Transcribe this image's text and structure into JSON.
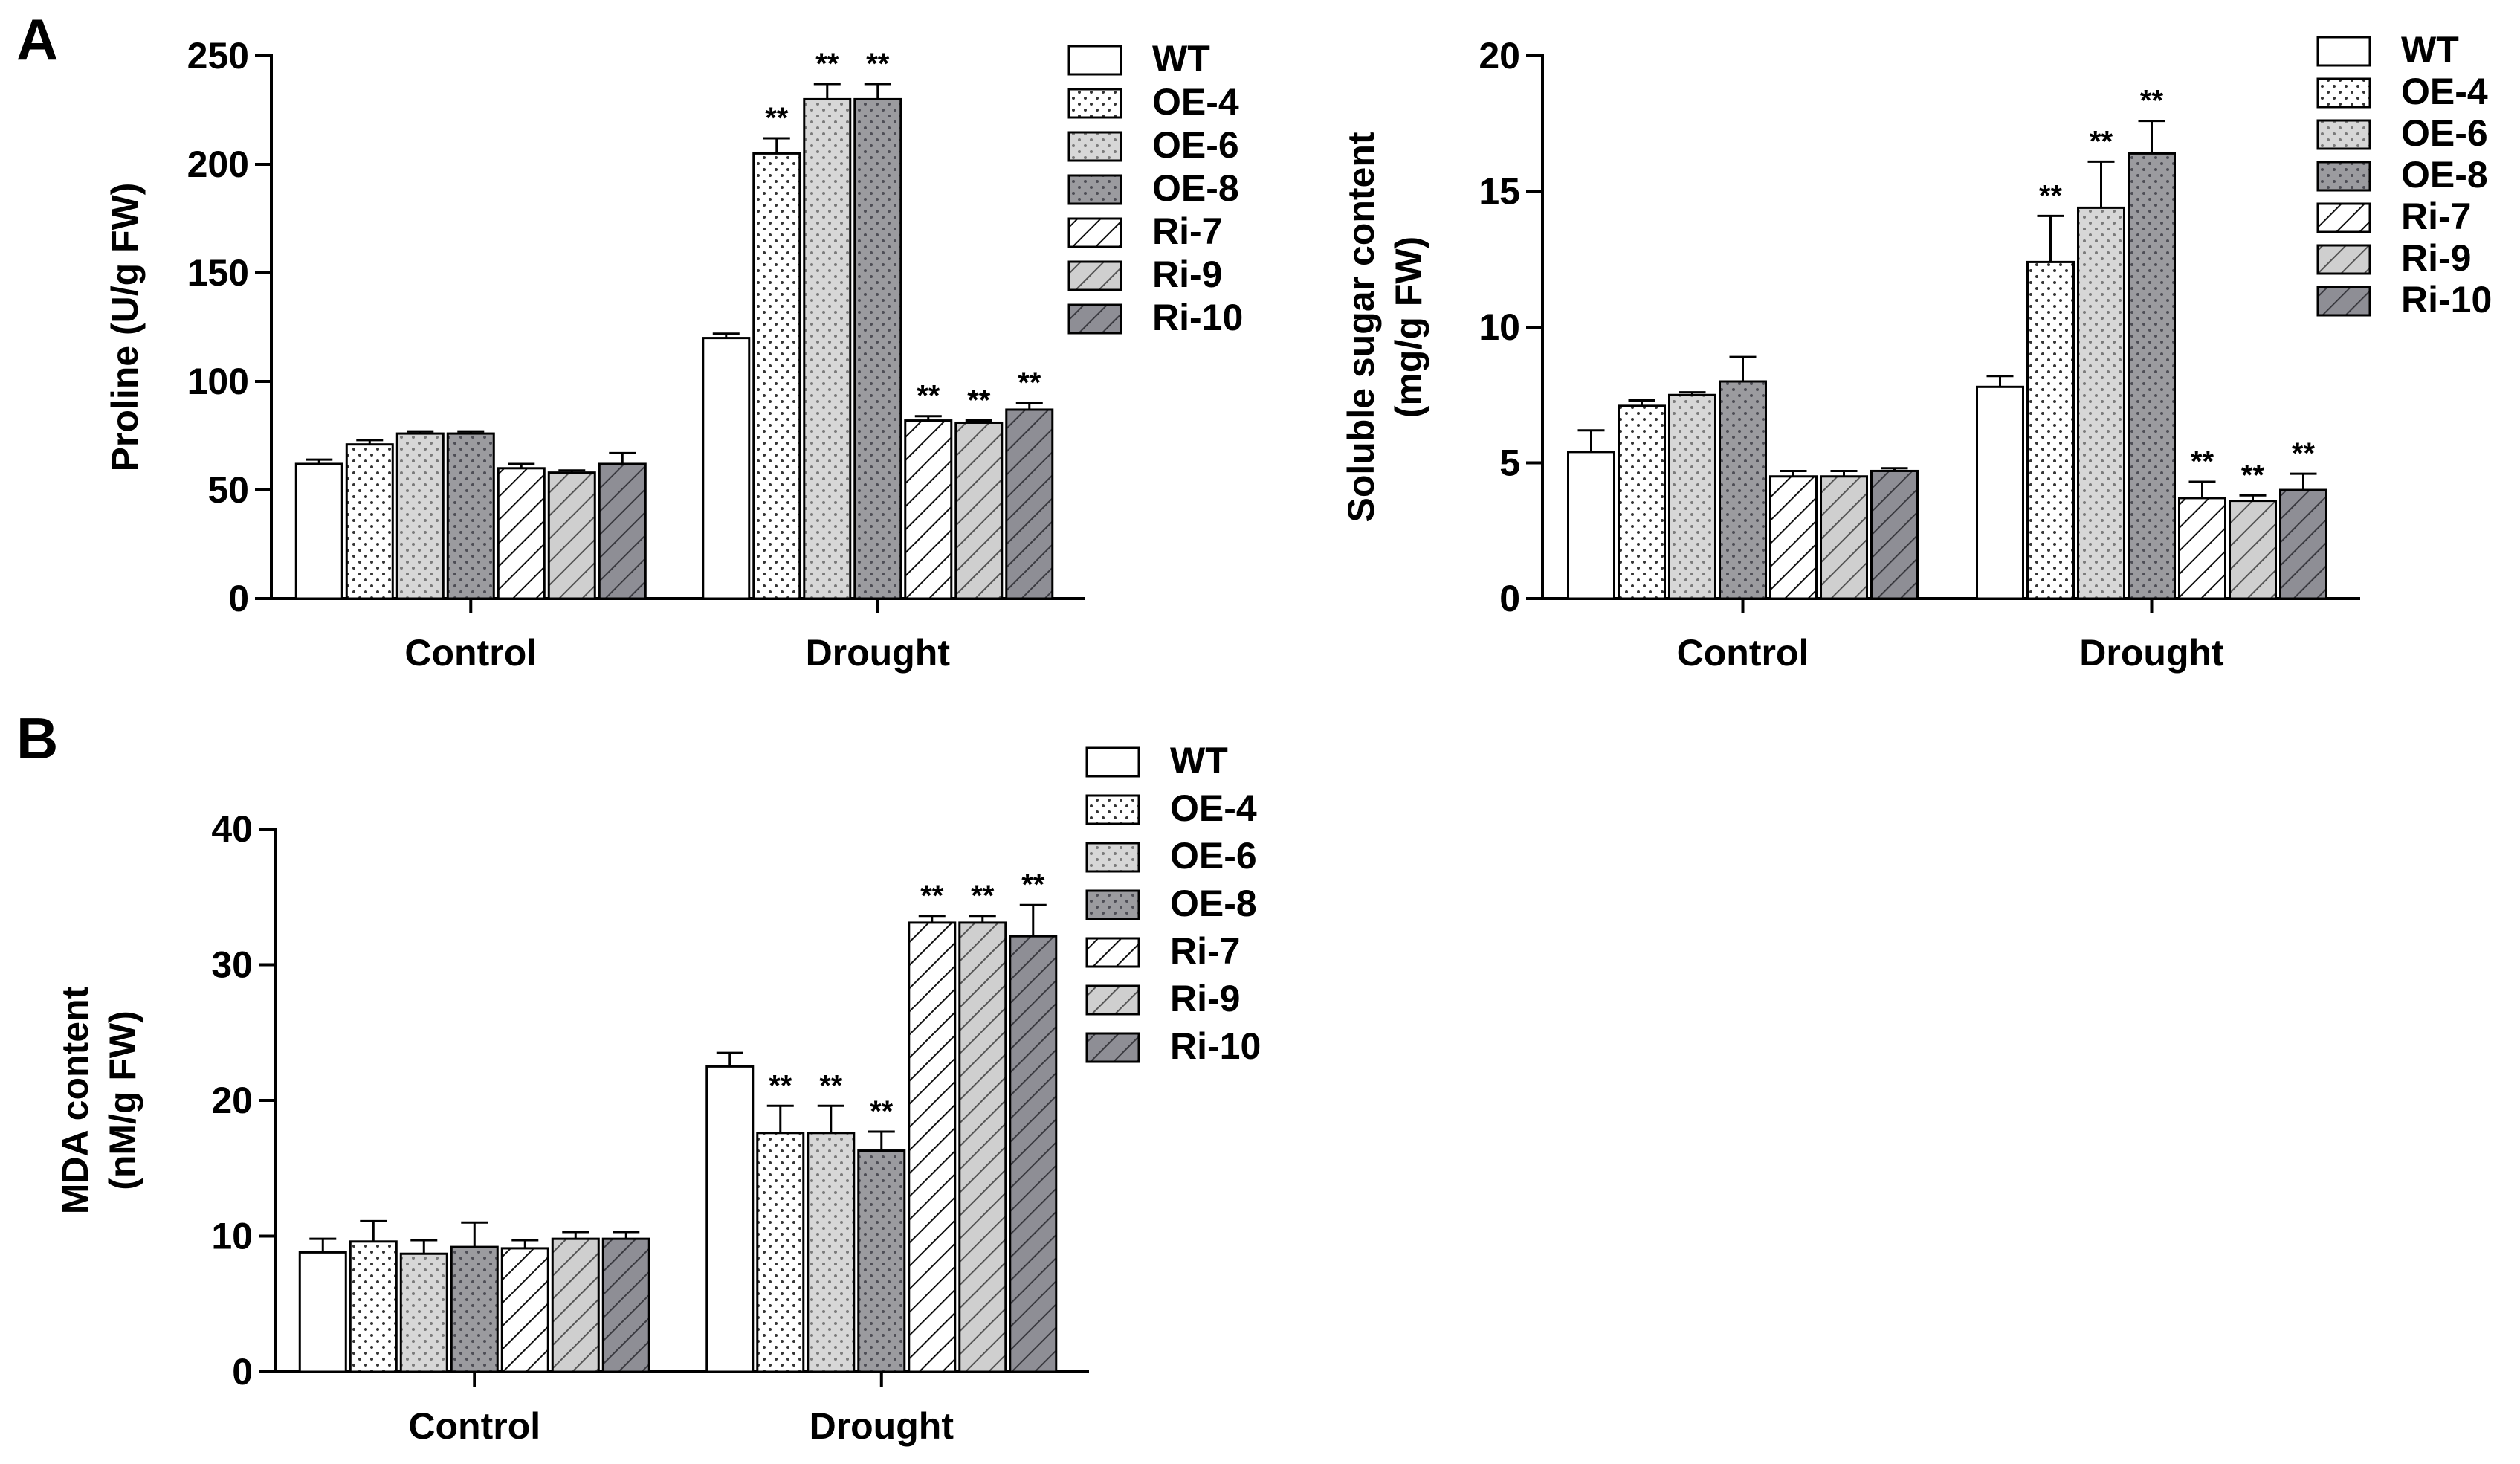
{
  "figure": {
    "panel_labels": [
      "A",
      "B"
    ],
    "groups": [
      "Control",
      "Drought"
    ],
    "series_names": [
      "WT",
      "OE-4",
      "OE-6",
      "OE-8",
      "Ri-7",
      "Ri-9",
      "Ri-10"
    ],
    "significance_mark": "**",
    "colors": {
      "WT": "#ffffff",
      "OE-4": "#ffffff",
      "OE-6": "#d7d7d7",
      "OE-8": "#9b9b9f",
      "Ri-7": "#ffffff",
      "Ri-9": "#cfcfcf",
      "Ri-10": "#8e8e95"
    }
  },
  "chart_data": [
    {
      "id": "proline",
      "panel": "A",
      "type": "bar",
      "title": "",
      "ylabel": "Proline (U/g FW)",
      "ylabel_lines": [
        "Proline (U/g FW)"
      ],
      "ylim": [
        0,
        250
      ],
      "yticks": [
        0,
        50,
        100,
        150,
        200,
        250
      ],
      "categories": [
        "Control",
        "Drought"
      ],
      "legend_position": "top-right",
      "series": [
        {
          "name": "WT",
          "values": [
            62,
            120
          ],
          "errors": [
            2,
            2
          ],
          "sig": [
            false,
            false
          ]
        },
        {
          "name": "OE-4",
          "values": [
            71,
            205
          ],
          "errors": [
            2,
            7
          ],
          "sig": [
            false,
            true
          ]
        },
        {
          "name": "OE-6",
          "values": [
            76,
            230
          ],
          "errors": [
            1,
            7
          ],
          "sig": [
            false,
            true
          ]
        },
        {
          "name": "OE-8",
          "values": [
            76,
            230
          ],
          "errors": [
            1,
            7
          ],
          "sig": [
            false,
            true
          ]
        },
        {
          "name": "Ri-7",
          "values": [
            60,
            82
          ],
          "errors": [
            2,
            2
          ],
          "sig": [
            false,
            true
          ]
        },
        {
          "name": "Ri-9",
          "values": [
            58,
            81
          ],
          "errors": [
            1,
            1
          ],
          "sig": [
            false,
            true
          ]
        },
        {
          "name": "Ri-10",
          "values": [
            62,
            87
          ],
          "errors": [
            5,
            3
          ],
          "sig": [
            false,
            true
          ]
        }
      ]
    },
    {
      "id": "soluble-sugar",
      "panel": "A",
      "type": "bar",
      "title": "",
      "ylabel": "Soluble sugar content (mg/g FW)",
      "ylabel_lines": [
        "Soluble sugar content",
        "(mg/g  FW)"
      ],
      "ylim": [
        0,
        20
      ],
      "yticks": [
        0,
        5,
        10,
        15,
        20
      ],
      "categories": [
        "Control",
        "Drought"
      ],
      "legend_position": "top-right",
      "series": [
        {
          "name": "WT",
          "values": [
            5.4,
            7.8
          ],
          "errors": [
            0.8,
            0.4
          ],
          "sig": [
            false,
            false
          ]
        },
        {
          "name": "OE-4",
          "values": [
            7.1,
            12.4
          ],
          "errors": [
            0.2,
            1.7
          ],
          "sig": [
            false,
            true
          ]
        },
        {
          "name": "OE-6",
          "values": [
            7.5,
            14.4
          ],
          "errors": [
            0.1,
            1.7
          ],
          "sig": [
            false,
            true
          ]
        },
        {
          "name": "OE-8",
          "values": [
            8.0,
            16.4
          ],
          "errors": [
            0.9,
            1.2
          ],
          "sig": [
            false,
            true
          ]
        },
        {
          "name": "Ri-7",
          "values": [
            4.5,
            3.7
          ],
          "errors": [
            0.2,
            0.6
          ],
          "sig": [
            false,
            true
          ]
        },
        {
          "name": "Ri-9",
          "values": [
            4.5,
            3.6
          ],
          "errors": [
            0.2,
            0.2
          ],
          "sig": [
            false,
            true
          ]
        },
        {
          "name": "Ri-10",
          "values": [
            4.7,
            4.0
          ],
          "errors": [
            0.1,
            0.6
          ],
          "sig": [
            false,
            true
          ]
        }
      ]
    },
    {
      "id": "mda",
      "panel": "B",
      "type": "bar",
      "title": "",
      "ylabel": "MDA content (nM/g FW)",
      "ylabel_lines": [
        "MDA content",
        "(nM/g  FW)"
      ],
      "ylim": [
        0,
        40
      ],
      "yticks": [
        0,
        10,
        20,
        30,
        40
      ],
      "categories": [
        "Control",
        "Drought"
      ],
      "legend_position": "top-right",
      "series": [
        {
          "name": "WT",
          "values": [
            8.8,
            22.5
          ],
          "errors": [
            1.0,
            1.0
          ],
          "sig": [
            false,
            false
          ]
        },
        {
          "name": "OE-4",
          "values": [
            9.6,
            17.6
          ],
          "errors": [
            1.5,
            2.0
          ],
          "sig": [
            false,
            true
          ]
        },
        {
          "name": "OE-6",
          "values": [
            8.7,
            17.6
          ],
          "errors": [
            1.0,
            2.0
          ],
          "sig": [
            false,
            true
          ]
        },
        {
          "name": "OE-8",
          "values": [
            9.2,
            16.3
          ],
          "errors": [
            1.8,
            1.4
          ],
          "sig": [
            false,
            true
          ]
        },
        {
          "name": "Ri-7",
          "values": [
            9.1,
            33.1
          ],
          "errors": [
            0.6,
            0.5
          ],
          "sig": [
            false,
            true
          ]
        },
        {
          "name": "Ri-9",
          "values": [
            9.8,
            33.1
          ],
          "errors": [
            0.5,
            0.5
          ],
          "sig": [
            false,
            true
          ]
        },
        {
          "name": "Ri-10",
          "values": [
            9.8,
            32.1
          ],
          "errors": [
            0.5,
            2.3
          ],
          "sig": [
            false,
            true
          ]
        }
      ]
    }
  ]
}
